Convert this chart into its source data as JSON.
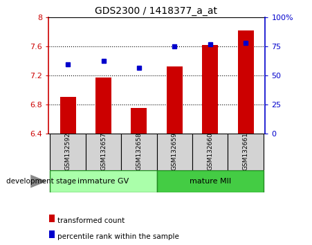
{
  "title": "GDS2300 / 1418377_a_at",
  "samples": [
    "GSM132592",
    "GSM132657",
    "GSM132658",
    "GSM132659",
    "GSM132660",
    "GSM132661"
  ],
  "bar_values": [
    6.9,
    7.17,
    6.75,
    7.32,
    7.62,
    7.82
  ],
  "percentile_values": [
    7.35,
    7.4,
    7.3,
    7.6,
    7.63,
    7.65
  ],
  "bar_bottom": 6.4,
  "ylim": [
    6.4,
    8.0
  ],
  "yticks": [
    6.4,
    6.8,
    7.2,
    7.6,
    8.0
  ],
  "ytick_labels": [
    "6.4",
    "6.8",
    "7.2",
    "7.6",
    "8"
  ],
  "right_yticks": [
    0,
    25,
    50,
    75,
    100
  ],
  "right_ytick_labels": [
    "0",
    "25",
    "50",
    "75",
    "100%"
  ],
  "right_ylim": [
    0,
    100
  ],
  "bar_color": "#cc0000",
  "dot_color": "#0000cc",
  "left_axis_color": "#cc0000",
  "right_axis_color": "#0000cc",
  "sample_box_color": "#d3d3d3",
  "group1_color": "#aaffaa",
  "group2_color": "#44cc44",
  "group1_label": "immature GV",
  "group2_label": "mature MII",
  "group_stage_label": "development stage",
  "legend_items": [
    {
      "label": "transformed count",
      "color": "#cc0000"
    },
    {
      "label": "percentile rank within the sample",
      "color": "#0000cc"
    }
  ],
  "gridline_color": "black",
  "gridline_lw": 0.8,
  "gridline_style": "dotted",
  "grid_yticks": [
    6.8,
    7.2,
    7.6
  ],
  "bar_width": 0.45,
  "dot_size": 5
}
